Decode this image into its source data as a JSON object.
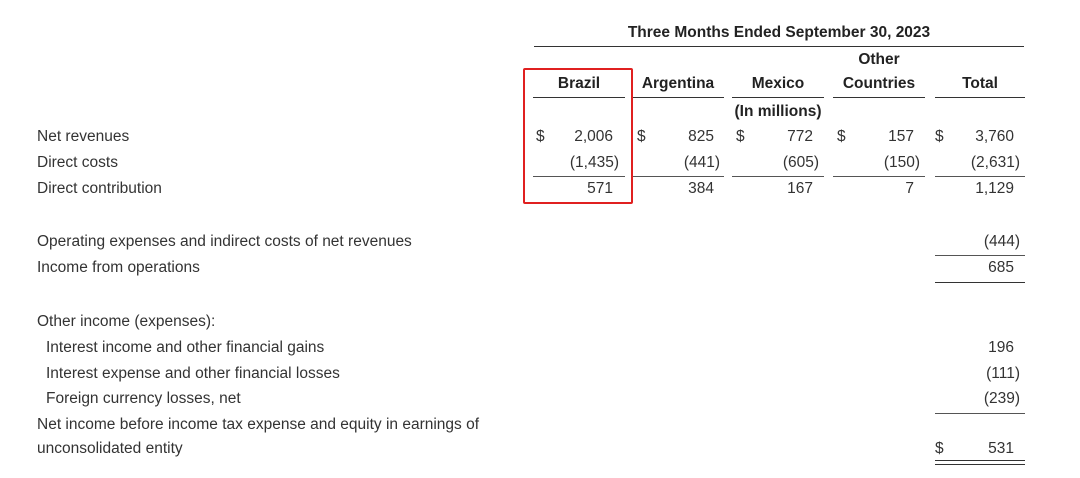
{
  "header": {
    "period": "Three Months Ended September 30, 2023",
    "unit_note": "(In millions)"
  },
  "columns": [
    {
      "label": "Brazil",
      "label_line1": ""
    },
    {
      "label": "Argentina",
      "label_line1": ""
    },
    {
      "label": "Mexico",
      "label_line1": ""
    },
    {
      "label": "Countries",
      "label_line1": "Other"
    },
    {
      "label": "Total",
      "label_line1": ""
    }
  ],
  "currency_symbol": "$",
  "rows": {
    "net_revenues": {
      "label": "Net revenues",
      "values": [
        "2,006",
        "825",
        "772",
        "157",
        "3,760"
      ]
    },
    "direct_costs": {
      "label": "Direct costs",
      "values": [
        "(1,435)",
        "(441)",
        "(605)",
        "(150)",
        "(2,631)"
      ]
    },
    "direct_contribution": {
      "label": "Direct contribution",
      "values": [
        "571",
        "384",
        "167",
        "7",
        "1,129"
      ]
    },
    "opex": {
      "label": "Operating expenses and indirect costs of net revenues",
      "total": "(444)"
    },
    "income_ops": {
      "label": "Income from operations",
      "total": "685"
    },
    "other_income_header": {
      "label": "Other income (expenses):"
    },
    "interest_income": {
      "label": "Interest income and other financial gains",
      "total": "196"
    },
    "interest_expense": {
      "label": "Interest expense and other financial losses",
      "total": "(111)"
    },
    "fx_losses": {
      "label": "Foreign currency losses, net",
      "total": "(239)"
    },
    "net_income": {
      "label_line1": "Net income before income tax expense and equity in earnings of",
      "label_line2": "unconsolidated entity",
      "total": "531"
    }
  },
  "highlight_color": "#e02020"
}
